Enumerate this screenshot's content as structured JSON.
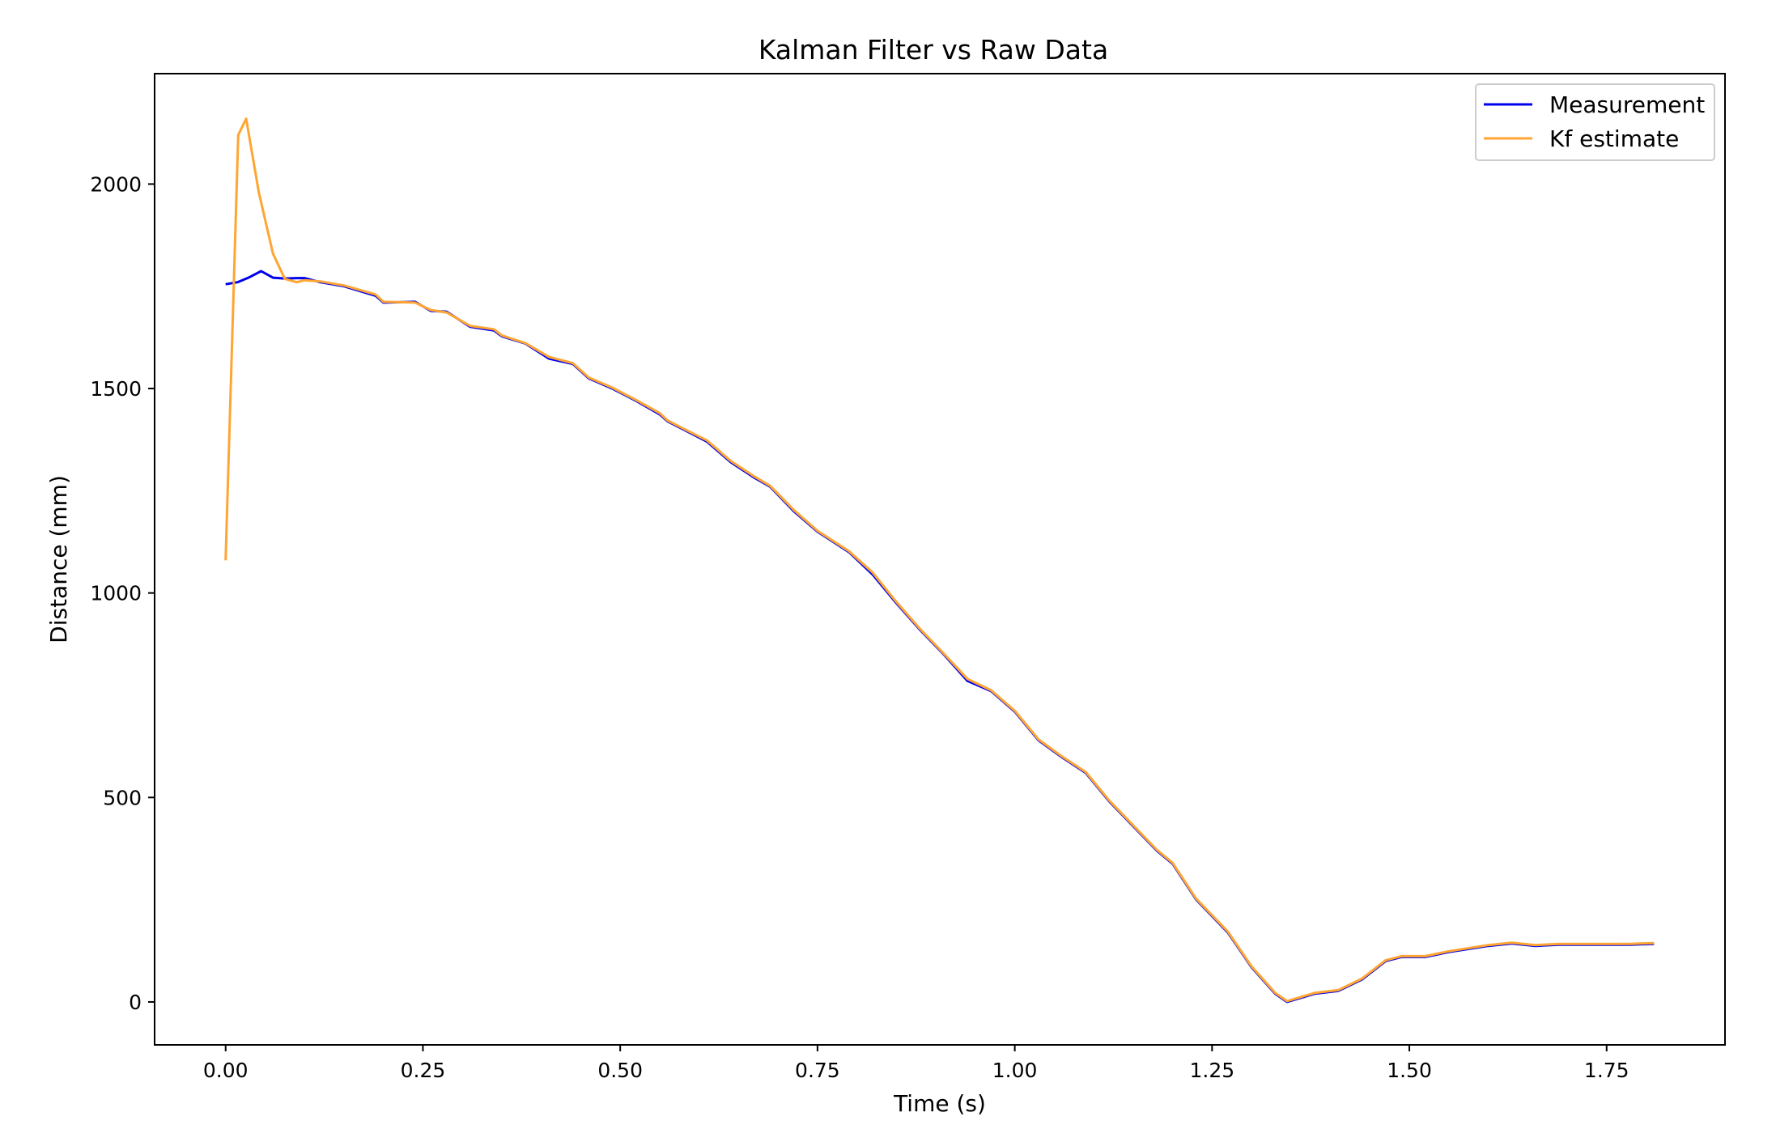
{
  "chart_data": {
    "type": "line",
    "title": "Kalman Filter vs Raw Data",
    "xlabel": "Time (s)",
    "ylabel": "Distance (mm)",
    "xlim": [
      -0.09,
      1.9
    ],
    "ylim": [
      -105,
      2270
    ],
    "xticks": [
      0.0,
      0.25,
      0.5,
      0.75,
      1.0,
      1.25,
      1.5,
      1.75
    ],
    "xtick_labels": [
      "0.00",
      "0.25",
      "0.50",
      "0.75",
      "1.00",
      "1.25",
      "1.50",
      "1.75"
    ],
    "yticks": [
      0,
      500,
      1000,
      1500,
      2000
    ],
    "ytick_labels": [
      "0",
      "500",
      "1000",
      "1500",
      "2000"
    ],
    "grid": false,
    "legend": "top-right",
    "series": [
      {
        "name": "Measurement",
        "color": "#0000ee",
        "x": [
          0.0,
          0.015,
          0.03,
          0.045,
          0.06,
          0.075,
          0.09,
          0.1,
          0.12,
          0.15,
          0.19,
          0.2,
          0.24,
          0.26,
          0.28,
          0.31,
          0.34,
          0.35,
          0.38,
          0.41,
          0.44,
          0.46,
          0.49,
          0.52,
          0.55,
          0.56,
          0.58,
          0.61,
          0.64,
          0.67,
          0.69,
          0.72,
          0.75,
          0.79,
          0.82,
          0.85,
          0.88,
          0.91,
          0.94,
          0.97,
          1.0,
          1.03,
          1.06,
          1.09,
          1.12,
          1.15,
          1.18,
          1.2,
          1.23,
          1.27,
          1.3,
          1.33,
          1.345,
          1.38,
          1.41,
          1.44,
          1.47,
          1.49,
          1.52,
          1.55,
          1.6,
          1.63,
          1.66,
          1.69,
          1.72,
          1.75,
          1.78,
          1.81
        ],
        "y": [
          1755,
          1760,
          1772,
          1787,
          1771,
          1769,
          1770,
          1770,
          1760,
          1750,
          1727,
          1710,
          1712,
          1690,
          1688,
          1651,
          1642,
          1628,
          1610,
          1573,
          1560,
          1525,
          1500,
          1470,
          1437,
          1420,
          1400,
          1370,
          1320,
          1282,
          1260,
          1200,
          1150,
          1100,
          1045,
          975,
          910,
          850,
          785,
          760,
          710,
          640,
          598,
          560,
          490,
          430,
          370,
          338,
          250,
          170,
          85,
          20,
          0,
          20,
          27,
          55,
          100,
          110,
          110,
          122,
          137,
          143,
          137,
          140,
          140,
          140,
          140,
          142
        ]
      },
      {
        "name": "Kf estimate",
        "color": "#ffa533",
        "x": [
          0.0,
          0.016,
          0.026,
          0.042,
          0.06,
          0.075,
          0.09,
          0.1,
          0.12,
          0.15,
          0.19,
          0.2,
          0.24,
          0.26,
          0.28,
          0.31,
          0.34,
          0.35,
          0.38,
          0.41,
          0.44,
          0.46,
          0.49,
          0.52,
          0.55,
          0.56,
          0.58,
          0.61,
          0.64,
          0.67,
          0.69,
          0.72,
          0.75,
          0.79,
          0.82,
          0.85,
          0.88,
          0.91,
          0.94,
          0.97,
          1.0,
          1.03,
          1.06,
          1.09,
          1.12,
          1.15,
          1.18,
          1.2,
          1.23,
          1.27,
          1.3,
          1.33,
          1.345,
          1.38,
          1.41,
          1.44,
          1.47,
          1.49,
          1.52,
          1.55,
          1.6,
          1.63,
          1.66,
          1.69,
          1.72,
          1.75,
          1.78,
          1.81
        ],
        "y": [
          1080,
          2120,
          2160,
          1980,
          1830,
          1768,
          1760,
          1765,
          1762,
          1752,
          1730,
          1712,
          1710,
          1692,
          1686,
          1653,
          1645,
          1630,
          1611,
          1577,
          1562,
          1527,
          1502,
          1472,
          1440,
          1422,
          1402,
          1373,
          1323,
          1285,
          1262,
          1203,
          1152,
          1102,
          1050,
          978,
          912,
          852,
          790,
          762,
          712,
          642,
          600,
          562,
          492,
          432,
          372,
          340,
          252,
          172,
          87,
          22,
          2,
          22,
          29,
          57,
          102,
          112,
          112,
          124,
          139,
          145,
          139,
          142,
          142,
          142,
          142,
          144
        ]
      }
    ]
  }
}
